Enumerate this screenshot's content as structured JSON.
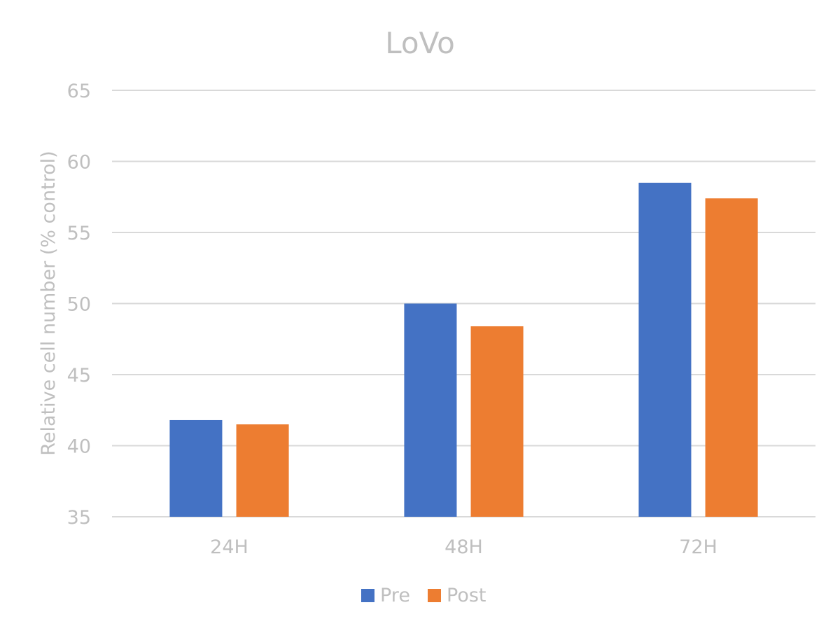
{
  "chart_data": {
    "type": "bar",
    "title": "LoVo",
    "xlabel": "",
    "ylabel": "Relative cell number (% control)",
    "categories": [
      "24H",
      "48H",
      "72H"
    ],
    "series": [
      {
        "name": "Pre",
        "color": "#4472C4",
        "values": [
          41.8,
          50.0,
          58.5
        ]
      },
      {
        "name": "Post",
        "color": "#ED7D31",
        "values": [
          41.5,
          48.4,
          57.4
        ]
      }
    ],
    "ylim": [
      35,
      65
    ],
    "yticks": [
      35,
      40,
      45,
      50,
      55,
      60,
      65
    ],
    "grid": true,
    "legend": "bottom",
    "colors": {
      "text": "#BFBFBF",
      "grid": "#D9D9D9"
    }
  }
}
